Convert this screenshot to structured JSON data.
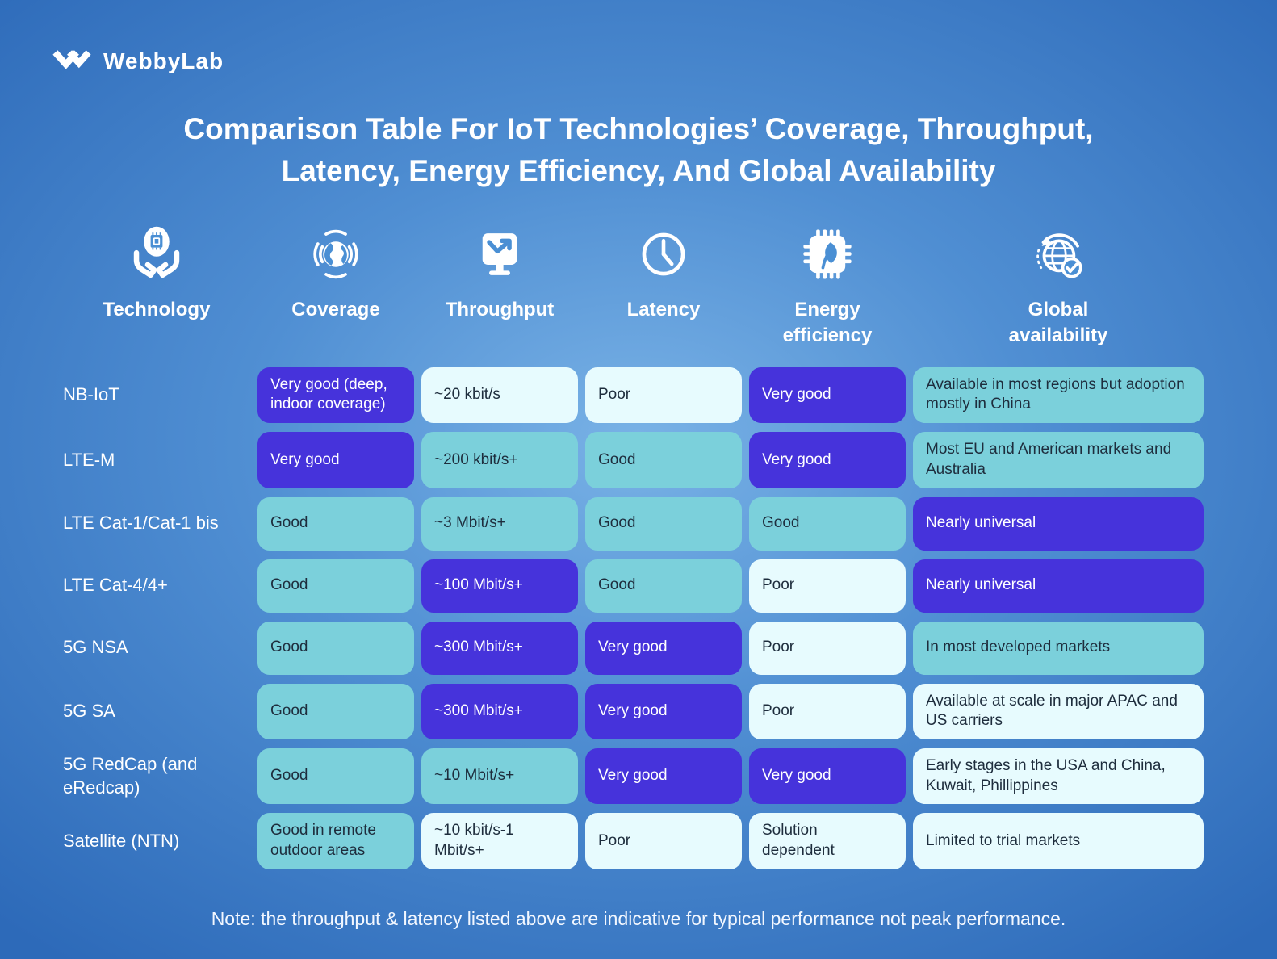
{
  "logo": {
    "text": "WebbyLab"
  },
  "title": "Comparison Table For IoT Technologies’ Coverage, Throughput, Latency, Energy Efficiency, And Global Availability",
  "columns": [
    {
      "label": "Technology",
      "icon": "technology-icon"
    },
    {
      "label": "Coverage",
      "icon": "coverage-icon"
    },
    {
      "label": "Throughput",
      "icon": "throughput-icon"
    },
    {
      "label": "Latency",
      "icon": "latency-icon"
    },
    {
      "label": "Energy efficiency",
      "icon": "energy-efficiency-icon"
    },
    {
      "label": "Global availability",
      "icon": "global-availability-icon"
    }
  ],
  "colors": {
    "rating_very_good": "#4633db",
    "rating_good": "#7bd0db",
    "rating_poor_or_neutral": "#e7fbfe",
    "background_center": "#79b2e6",
    "background_edge": "#2d6ab9",
    "dark_text": "#1e2d3d"
  },
  "chart_data": {
    "type": "table",
    "title": "Comparison Table For IoT Technologies’ Coverage, Throughput, Latency, Energy Efficiency, And Global Availability",
    "columns": [
      "Technology",
      "Coverage",
      "Throughput",
      "Latency",
      "Energy efficiency",
      "Global availability"
    ],
    "rows": [
      [
        "NB-IoT",
        "Very good (deep, indoor coverage)",
        "~20 kbit/s",
        "Poor",
        "Very good",
        "Available in most regions but adoption mostly in China"
      ],
      [
        "LTE-M",
        "Very good",
        "~200 kbit/s+",
        "Good",
        "Very good",
        "Most EU and American markets and Australia"
      ],
      [
        "LTE Cat-1/Cat-1 bis",
        "Good",
        "~3 Mbit/s+",
        "Good",
        "Good",
        "Nearly universal"
      ],
      [
        "LTE Cat-4/4+",
        "Good",
        "~100 Mbit/s+",
        "Good",
        "Poor",
        "Nearly universal"
      ],
      [
        "5G NSA",
        "Good",
        "~300 Mbit/s+",
        "Very good",
        "Poor",
        "In most developed markets"
      ],
      [
        "5G SA",
        "Good",
        "~300 Mbit/s+",
        "Very good",
        "Poor",
        "Available at scale in major APAC and US carriers"
      ],
      [
        "5G RedCap (and eRedcap)",
        "Good",
        "~10 Mbit/s+",
        "Very good",
        "Very good",
        "Early stages in the USA and China, Kuwait, Phillippines"
      ],
      [
        "Satellite (NTN)",
        "Good in remote outdoor areas",
        "~10 kbit/s-1 Mbit/s+",
        "Poor",
        "Solution dependent",
        "Limited to trial markets"
      ]
    ]
  },
  "rows": [
    {
      "technology": "NB-IoT",
      "cells": [
        {
          "text": "Very good (deep, indoor coverage)",
          "tone": "purple"
        },
        {
          "text": "~20 kbit/s",
          "tone": "light"
        },
        {
          "text": "Poor",
          "tone": "light"
        },
        {
          "text": "Very good",
          "tone": "purple"
        },
        {
          "text": "Available in most regions but adoption mostly in China",
          "tone": "teal"
        }
      ]
    },
    {
      "technology": "LTE-M",
      "cells": [
        {
          "text": "Very good",
          "tone": "purple"
        },
        {
          "text": "~200 kbit/s+",
          "tone": "teal"
        },
        {
          "text": "Good",
          "tone": "teal"
        },
        {
          "text": "Very good",
          "tone": "purple"
        },
        {
          "text": "Most EU and American markets and Australia",
          "tone": "teal"
        }
      ]
    },
    {
      "technology": "LTE Cat-1/Cat-1 bis",
      "cells": [
        {
          "text": "Good",
          "tone": "teal"
        },
        {
          "text": "~3 Mbit/s+",
          "tone": "teal"
        },
        {
          "text": "Good",
          "tone": "teal"
        },
        {
          "text": "Good",
          "tone": "teal"
        },
        {
          "text": "Nearly universal",
          "tone": "purple"
        }
      ]
    },
    {
      "technology": "LTE Cat-4/4+",
      "cells": [
        {
          "text": "Good",
          "tone": "teal"
        },
        {
          "text": "~100 Mbit/s+",
          "tone": "purple"
        },
        {
          "text": "Good",
          "tone": "teal"
        },
        {
          "text": "Poor",
          "tone": "light"
        },
        {
          "text": "Nearly universal",
          "tone": "purple"
        }
      ]
    },
    {
      "technology": "5G NSA",
      "cells": [
        {
          "text": "Good",
          "tone": "teal"
        },
        {
          "text": "~300 Mbit/s+",
          "tone": "purple"
        },
        {
          "text": "Very good",
          "tone": "purple"
        },
        {
          "text": "Poor",
          "tone": "light"
        },
        {
          "text": "In most developed markets",
          "tone": "teal"
        }
      ]
    },
    {
      "technology": "5G SA",
      "cells": [
        {
          "text": "Good",
          "tone": "teal"
        },
        {
          "text": "~300 Mbit/s+",
          "tone": "purple"
        },
        {
          "text": "Very good",
          "tone": "purple"
        },
        {
          "text": "Poor",
          "tone": "light"
        },
        {
          "text": "Available at scale in major APAC and US carriers",
          "tone": "light"
        }
      ]
    },
    {
      "technology": "5G RedCap (and eRedcap)",
      "cells": [
        {
          "text": "Good",
          "tone": "teal"
        },
        {
          "text": "~10 Mbit/s+",
          "tone": "teal"
        },
        {
          "text": "Very good",
          "tone": "purple"
        },
        {
          "text": "Very good",
          "tone": "purple"
        },
        {
          "text": "Early stages in the USA and China, Kuwait, Phillippines",
          "tone": "light"
        }
      ]
    },
    {
      "technology": "Satellite (NTN)",
      "cells": [
        {
          "text": "Good in remote outdoor areas",
          "tone": "teal"
        },
        {
          "text": "~10 kbit/s-1 Mbit/s+",
          "tone": "light"
        },
        {
          "text": "Poor",
          "tone": "light"
        },
        {
          "text": "Solution dependent",
          "tone": "light"
        },
        {
          "text": "Limited to trial markets",
          "tone": "light"
        }
      ]
    }
  ],
  "note": "Note: the throughput & latency listed above are indicative for typical performance not peak performance."
}
